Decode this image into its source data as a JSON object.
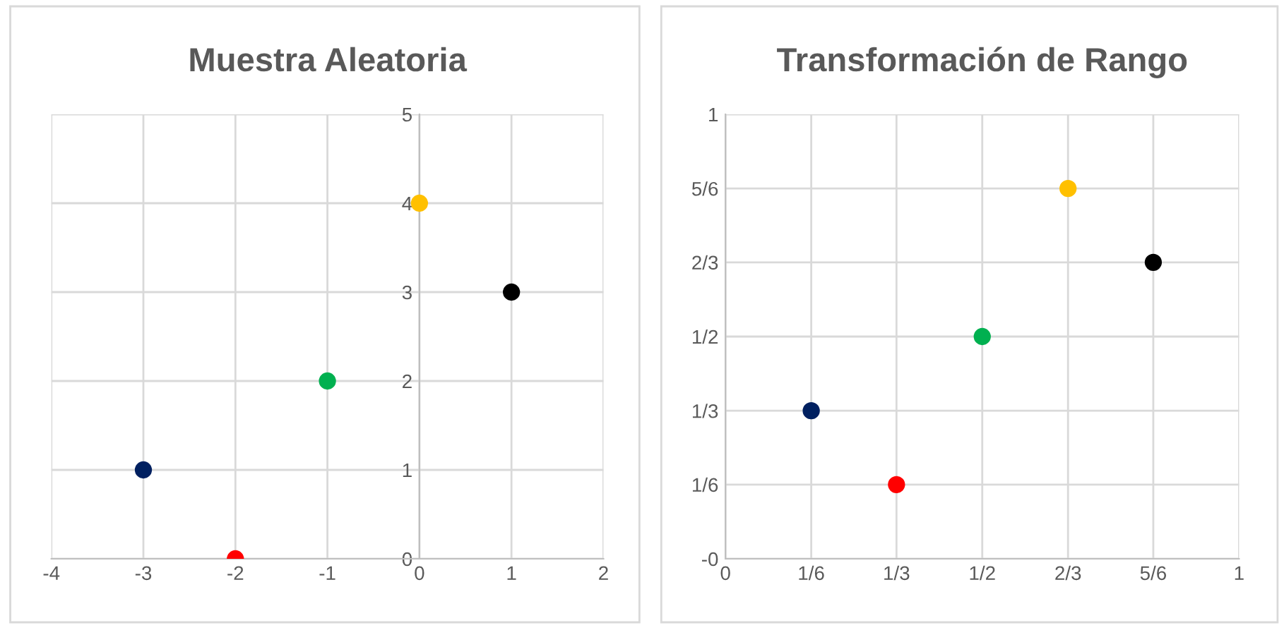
{
  "chart_data": [
    {
      "type": "scatter",
      "title": "Muestra Aleatoria",
      "x": [
        -3,
        -2,
        -1,
        0,
        1
      ],
      "series": [
        {
          "values": [
            1,
            0,
            2,
            4,
            3
          ],
          "colors": [
            "#002060",
            "#ff0000",
            "#00b050",
            "#ffc000",
            "#000000"
          ]
        }
      ],
      "xlim": [
        -4,
        2
      ],
      "xticks": [
        -4,
        -3,
        -2,
        -1,
        0,
        1,
        2
      ],
      "ylim": [
        0,
        5
      ],
      "yticks": [
        0,
        1,
        2,
        3,
        4,
        5
      ],
      "grid": true,
      "marker": "circle"
    },
    {
      "type": "scatter",
      "title": "Transformación de Rango",
      "x": [
        0.167,
        0.333,
        0.5,
        0.667,
        0.833
      ],
      "series": [
        {
          "values": [
            0.333,
            0.167,
            0.5,
            0.833,
            0.667
          ],
          "colors": [
            "#002060",
            "#ff0000",
            "#00b050",
            "#ffc000",
            "#000000"
          ]
        }
      ],
      "xlim": [
        0,
        1
      ],
      "xticks": [
        0,
        {
          "value": 0.167,
          "label": "1/6"
        },
        {
          "value": 0.333,
          "label": "1/3"
        },
        {
          "value": 0.5,
          "label": "1/2"
        },
        {
          "value": 0.667,
          "label": "2/3"
        },
        {
          "value": 0.833,
          "label": "5/6"
        },
        1
      ],
      "ylim": [
        0,
        1
      ],
      "yticks": [
        {
          "value": 0,
          "label": "-0"
        },
        {
          "value": 0.167,
          "label": "1/6"
        },
        {
          "value": 0.333,
          "label": "1/3"
        },
        {
          "value": 0.5,
          "label": "1/2"
        },
        {
          "value": 0.667,
          "label": "2/3"
        },
        {
          "value": 0.833,
          "label": "5/6"
        },
        1
      ],
      "grid": true,
      "marker": "circle"
    }
  ]
}
